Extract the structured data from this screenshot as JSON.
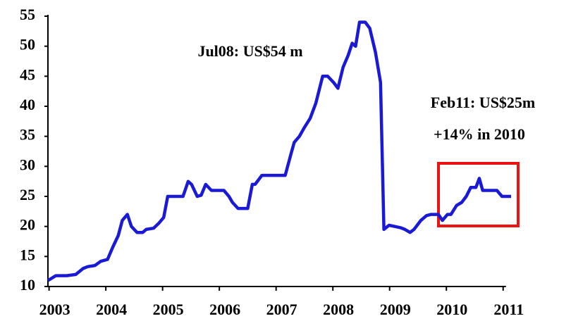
{
  "chart_data": {
    "type": "line",
    "annotations": [
      "Jul08: US$54 m",
      "Feb11: US$25m",
      "+14% in 2010"
    ],
    "x": [
      2002.98,
      2003.12,
      2003.31,
      2003.47,
      2003.6,
      2003.68,
      2003.81,
      2003.91,
      2004.03,
      2004.12,
      2004.22,
      2004.29,
      2004.38,
      2004.45,
      2004.55,
      2004.65,
      2004.71,
      2004.84,
      2004.93,
      2005.02,
      2005.09,
      2005.21,
      2005.36,
      2005.45,
      2005.51,
      2005.61,
      2005.68,
      2005.76,
      2005.86,
      2005.98,
      2006.08,
      2006.17,
      2006.23,
      2006.33,
      2006.5,
      2006.58,
      2006.63,
      2006.75,
      2006.98,
      2007.16,
      2007.26,
      2007.32,
      2007.41,
      2007.5,
      2007.6,
      2007.7,
      2007.82,
      2007.91,
      2008.01,
      2008.09,
      2008.18,
      2008.27,
      2008.34,
      2008.4,
      2008.47,
      2008.57,
      2008.65,
      2008.75,
      2008.84,
      2008.9,
      2008.99,
      2009.09,
      2009.19,
      2009.27,
      2009.36,
      2009.43,
      2009.55,
      2009.65,
      2009.73,
      2009.86,
      2009.93,
      2010.02,
      2010.08,
      2010.18,
      2010.27,
      2010.35,
      2010.43,
      2010.52,
      2010.58,
      2010.64,
      2010.76,
      2010.89,
      2010.98,
      2011.14
    ],
    "series": [
      {
        "color": "#1a1ad6",
        "values": [
          11,
          11.8,
          11.8,
          12,
          13,
          13.3,
          13.5,
          14.2,
          14.5,
          16.5,
          18.5,
          21,
          22,
          20,
          19,
          19,
          19.5,
          19.7,
          20.5,
          21.5,
          25,
          25,
          25,
          27.5,
          27,
          25,
          25.2,
          27,
          26,
          26,
          26,
          25,
          24,
          23,
          23,
          27,
          27,
          28.5,
          28.5,
          28.5,
          32,
          34,
          35,
          36.5,
          38,
          40.5,
          45,
          45,
          44,
          43,
          46.5,
          48.5,
          50.5,
          50,
          54,
          54,
          53,
          49,
          44,
          19.5,
          20.2,
          20,
          19.8,
          19.5,
          19,
          19.5,
          21,
          21.8,
          22,
          22,
          21,
          22,
          22,
          23.5,
          24,
          25,
          26.5,
          26.5,
          28,
          26,
          26,
          26,
          25,
          25
        ]
      }
    ],
    "xlim": [
      2002.98,
      2011.14
    ],
    "xticks": [
      2003,
      2004,
      2005,
      2006,
      2007,
      2008,
      2009,
      2010,
      2011
    ],
    "ylim": [
      10,
      55
    ],
    "yticks": [
      10,
      15,
      20,
      25,
      30,
      35,
      40,
      45,
      50,
      55
    ]
  }
}
